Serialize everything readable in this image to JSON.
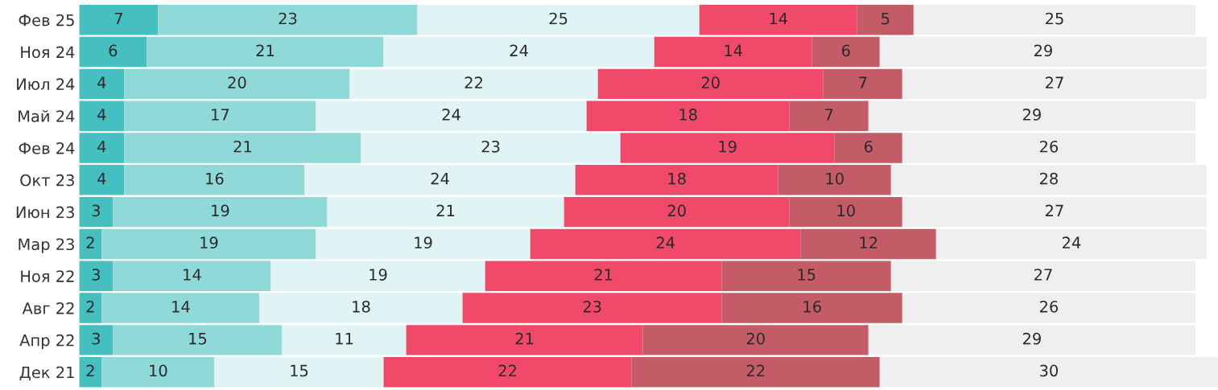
{
  "chart_data": {
    "type": "bar",
    "orientation": "horizontal",
    "stacked": true,
    "data_labels": true,
    "tick_labels": "y",
    "grid": false,
    "legend": false,
    "xlim": [
      0,
      101
    ],
    "categories": [
      "Фев 25",
      "Ноя 24",
      "Июл 24",
      "Май 24",
      "Фев 24",
      "Окт 23",
      "Июн 23",
      "Мар 23",
      "Ноя 22",
      "Авг 22",
      "Апр 22",
      "Дек 21"
    ],
    "series": [
      {
        "color": "#45bfbf",
        "values": [
          7,
          6,
          4,
          4,
          4,
          4,
          3,
          2,
          3,
          2,
          3,
          2
        ]
      },
      {
        "color": "#8fd9d8",
        "values": [
          23,
          21,
          20,
          17,
          21,
          16,
          19,
          19,
          14,
          14,
          15,
          10
        ]
      },
      {
        "color": "#e0f4f6",
        "values": [
          25,
          24,
          22,
          24,
          23,
          24,
          21,
          19,
          19,
          18,
          11,
          15
        ]
      },
      {
        "color": "#f0496a",
        "values": [
          14,
          14,
          20,
          18,
          19,
          18,
          20,
          24,
          21,
          23,
          21,
          22
        ]
      },
      {
        "color": "#c45c68",
        "values": [
          5,
          6,
          7,
          7,
          6,
          10,
          10,
          12,
          15,
          16,
          20,
          22
        ]
      },
      {
        "color": "#efefef",
        "values": [
          25,
          29,
          27,
          29,
          26,
          28,
          27,
          24,
          27,
          26,
          29,
          30
        ]
      }
    ]
  }
}
